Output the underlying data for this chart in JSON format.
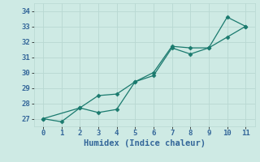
{
  "xlabel": "Humidex (Indice chaleur)",
  "xlim": [
    -0.5,
    11.5
  ],
  "ylim": [
    26.5,
    34.5
  ],
  "yticks": [
    27,
    28,
    29,
    30,
    31,
    32,
    33,
    34
  ],
  "xticks": [
    0,
    1,
    2,
    3,
    4,
    5,
    6,
    7,
    8,
    9,
    10,
    11
  ],
  "bg_color": "#ceeae4",
  "grid_color": "#b8d8d2",
  "line_color": "#1a7a6e",
  "line1_x": [
    0,
    1,
    2,
    3,
    4,
    5,
    6,
    7,
    8,
    9,
    10,
    11
  ],
  "line1_y": [
    27.0,
    26.8,
    27.7,
    27.4,
    27.6,
    29.4,
    30.0,
    31.7,
    31.6,
    31.6,
    33.6,
    33.0
  ],
  "line2_x": [
    0,
    2,
    3,
    4,
    5,
    6,
    7,
    8,
    9,
    10,
    11
  ],
  "line2_y": [
    27.0,
    27.7,
    28.5,
    28.6,
    29.4,
    29.8,
    31.6,
    31.2,
    31.6,
    32.3,
    33.0
  ],
  "marker": "D",
  "markersize": 2.5,
  "linewidth": 0.9,
  "font_color": "#336699",
  "tick_fontsize": 6.5,
  "label_fontsize": 7.5
}
